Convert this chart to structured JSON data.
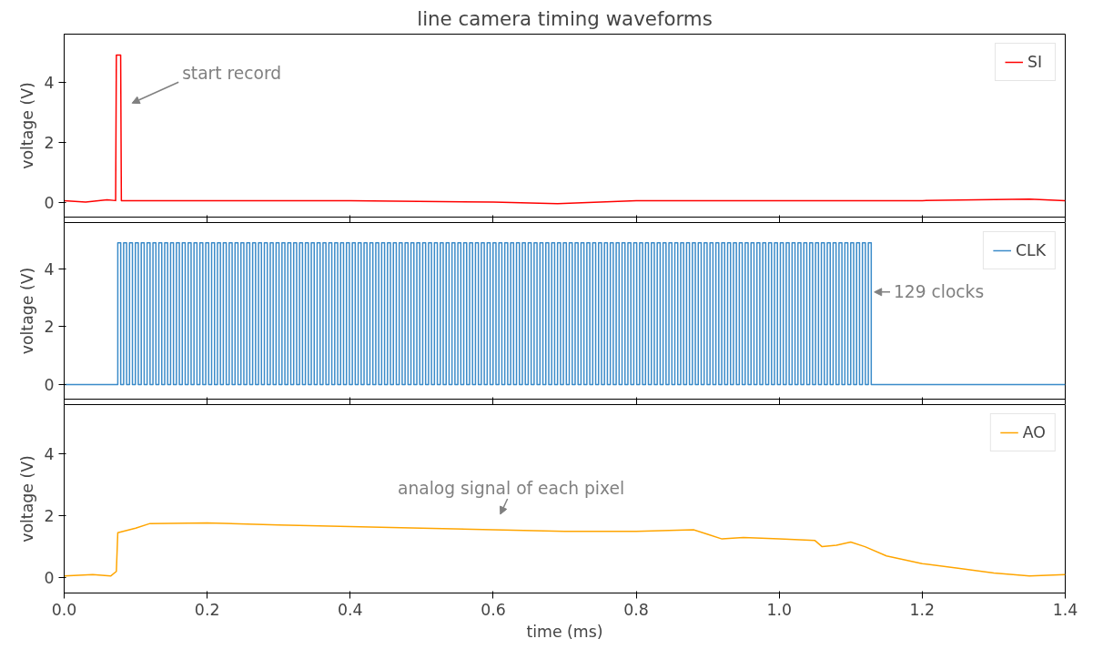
{
  "chart_data": [
    {
      "type": "line",
      "title": "line camera timing waveforms",
      "ylabel": "voltage (V)",
      "xlim": [
        0,
        1.4
      ],
      "xticks": [
        {
          "value": 0,
          "label": null
        },
        {
          "value": 0.2,
          "label": null
        },
        {
          "value": 0.4,
          "label": null
        },
        {
          "value": 0.6,
          "label": null
        },
        {
          "value": 0.8,
          "label": null
        },
        {
          "value": 1.0,
          "label": null
        },
        {
          "value": 1.2,
          "label": null
        },
        {
          "value": 1.4,
          "label": null
        }
      ],
      "ylim": [
        -0.5,
        5.6
      ],
      "yticks": [
        0,
        2,
        4
      ],
      "tick_labels": "y",
      "legend": "top right",
      "grid": false,
      "series": [
        {
          "name": "SI",
          "color": "#ff0000",
          "x": [
            0,
            0.03,
            0.06,
            0.072,
            0.073,
            0.079,
            0.08,
            0.2,
            0.4,
            0.6,
            0.69,
            0.8,
            1.0,
            1.2,
            1.35,
            1.4
          ],
          "values": [
            0.05,
            0.0,
            0.08,
            0.05,
            4.9,
            4.9,
            0.05,
            0.05,
            0.05,
            0.0,
            -0.05,
            0.05,
            0.05,
            0.05,
            0.1,
            0.05
          ]
        }
      ],
      "annotations": [
        "start record"
      ]
    },
    {
      "type": "step",
      "ylabel": "voltage (V)",
      "xlim": [
        0,
        1.4
      ],
      "xticks": [
        {
          "value": 0,
          "label": null
        },
        {
          "value": 0.2,
          "label": null
        },
        {
          "value": 0.4,
          "label": null
        },
        {
          "value": 0.6,
          "label": null
        },
        {
          "value": 0.8,
          "label": null
        },
        {
          "value": 1.0,
          "label": null
        },
        {
          "value": 1.2,
          "label": null
        },
        {
          "value": 1.4,
          "label": null
        }
      ],
      "ylim": [
        -0.5,
        5.6
      ],
      "yticks": [
        0,
        2,
        4
      ],
      "tick_labels": "y",
      "legend": "top right",
      "grid": false,
      "series": [
        {
          "name": "CLK",
          "color": "#3b8bc9",
          "x": [
            0,
            0.075,
            0.0791,
            0.0832,
            0.0873,
            0.0914,
            0.0955,
            0.0996,
            0.1037,
            0.1078,
            0.1119,
            0.116,
            0.1201,
            0.1242,
            0.1283,
            0.1324,
            0.1365,
            0.1406,
            0.1447,
            0.1488,
            0.1529,
            0.157,
            0.1611,
            0.1652,
            0.1693,
            0.1734,
            0.1775,
            0.1816,
            0.1857,
            0.1898,
            0.1939,
            0.198,
            0.2021,
            0.2062,
            0.2103,
            0.2144,
            0.2185,
            0.2226,
            0.2267,
            0.2308,
            0.2349,
            0.239,
            0.2431,
            0.2472,
            0.2513,
            0.2554,
            0.2595,
            0.2636,
            0.2677,
            0.2718,
            0.2759,
            0.28,
            0.2841,
            0.2882,
            0.2923,
            0.2964,
            0.3005,
            0.3046,
            0.3087,
            0.3128,
            0.3169,
            0.321,
            0.3251,
            0.3292,
            0.3333,
            0.3374,
            0.3415,
            0.3456,
            0.3497,
            0.3538,
            0.3579,
            0.362,
            0.3661,
            0.3702,
            0.3743,
            0.3784,
            0.3825,
            0.3866,
            0.3907,
            0.3948,
            0.3989,
            0.403,
            0.4071,
            0.4112,
            0.4153,
            0.4194,
            0.4235,
            0.4276,
            0.4317,
            0.4358,
            0.4399,
            0.444,
            0.4481,
            0.4522,
            0.4563,
            0.4604,
            0.4645,
            0.4686,
            0.4727,
            0.4768,
            0.4809,
            0.485,
            0.4891,
            0.4932,
            0.4973,
            0.5014,
            0.5055,
            0.5096,
            0.5137,
            0.5178,
            0.5219,
            0.526,
            0.5301,
            0.5342,
            0.5383,
            0.5424,
            0.5465,
            0.5506,
            0.5547,
            0.5588,
            0.5629,
            0.567,
            0.5711,
            0.5752,
            0.5793,
            0.5834,
            0.5875,
            0.5916,
            0.5957,
            0.5998,
            0.6039,
            0.608,
            0.6121,
            0.6162,
            0.6203,
            0.6244,
            0.6285,
            0.6326,
            0.6367,
            0.6408,
            0.6449,
            0.649,
            0.6531,
            0.6572,
            0.6613,
            0.6654,
            0.6695,
            0.6736,
            0.6777,
            0.6818,
            0.6859,
            0.69,
            0.6941,
            0.6982,
            0.7023,
            0.7064,
            0.7105,
            0.7146,
            0.7187,
            0.7228,
            0.7269,
            0.731,
            0.7351,
            0.7392,
            0.7433,
            0.7474,
            0.7515,
            0.7556,
            0.7597,
            0.7638,
            0.7679,
            0.772,
            0.7761,
            0.7802,
            0.7843,
            0.7884,
            0.7925,
            0.7966,
            0.8007,
            0.8048,
            0.8089,
            0.813,
            0.8171,
            0.8212,
            0.8253,
            0.8294,
            0.8335,
            0.8376,
            0.8417,
            0.8458,
            0.8499,
            0.854,
            0.8581,
            0.8622,
            0.8663,
            0.8704,
            0.8745,
            0.8786,
            0.8827,
            0.8868,
            0.8909,
            0.895,
            0.8991,
            0.9032,
            0.9073,
            0.9114,
            0.9155,
            0.9196,
            0.9237,
            0.9278,
            0.9319,
            0.936,
            0.9401,
            0.9442,
            0.9483,
            0.9524,
            0.9565,
            0.9606,
            0.9647,
            0.9688,
            0.9729,
            0.977,
            0.9811,
            0.9852,
            0.9893,
            0.9934,
            0.9975,
            1.0016,
            1.0057,
            1.0098,
            1.0139,
            1.018,
            1.0221,
            1.0262,
            1.0303,
            1.0344,
            1.0385,
            1.0426,
            1.0467,
            1.0508,
            1.0549,
            1.059,
            1.0631,
            1.0672,
            1.0713,
            1.0754,
            1.0795,
            1.0836,
            1.0877,
            1.0918,
            1.0959,
            1.1,
            1.1041,
            1.1082,
            1.1123,
            1.1164,
            1.1205,
            1.1246,
            1.1287,
            1.4
          ],
          "values": [
            0,
            4.9,
            0,
            4.9,
            0,
            4.9,
            0,
            4.9,
            0,
            4.9,
            0,
            4.9,
            0,
            4.9,
            0,
            4.9,
            0,
            4.9,
            0,
            4.9,
            0,
            4.9,
            0,
            4.9,
            0,
            4.9,
            0,
            4.9,
            0,
            4.9,
            0,
            4.9,
            0,
            4.9,
            0,
            4.9,
            0,
            4.9,
            0,
            4.9,
            0,
            4.9,
            0,
            4.9,
            0,
            4.9,
            0,
            4.9,
            0,
            4.9,
            0,
            4.9,
            0,
            4.9,
            0,
            4.9,
            0,
            4.9,
            0,
            4.9,
            0,
            4.9,
            0,
            4.9,
            0,
            4.9,
            0,
            4.9,
            0,
            4.9,
            0,
            4.9,
            0,
            4.9,
            0,
            4.9,
            0,
            4.9,
            0,
            4.9,
            0,
            4.9,
            0,
            4.9,
            0,
            4.9,
            0,
            4.9,
            0,
            4.9,
            0,
            4.9,
            0,
            4.9,
            0,
            4.9,
            0,
            4.9,
            0,
            4.9,
            0,
            4.9,
            0,
            4.9,
            0,
            4.9,
            0,
            4.9,
            0,
            4.9,
            0,
            4.9,
            0,
            4.9,
            0,
            4.9,
            0,
            4.9,
            0,
            4.9,
            0,
            4.9,
            0,
            4.9,
            0,
            4.9,
            0,
            4.9,
            0,
            4.9,
            0,
            4.9,
            0,
            4.9,
            0,
            4.9,
            0,
            4.9,
            0,
            4.9,
            0,
            4.9,
            0,
            4.9,
            0,
            4.9,
            0,
            4.9,
            0,
            4.9,
            0,
            4.9,
            0,
            4.9,
            0,
            4.9,
            0,
            4.9,
            0,
            4.9,
            0,
            4.9,
            0,
            4.9,
            0,
            4.9,
            0,
            4.9,
            0,
            4.9,
            0,
            4.9,
            0,
            4.9,
            0,
            4.9,
            0,
            4.9,
            0,
            4.9,
            0,
            4.9,
            0,
            4.9,
            0,
            4.9,
            0,
            4.9,
            0,
            4.9,
            0,
            4.9,
            0,
            4.9,
            0,
            4.9,
            0,
            4.9,
            0,
            4.9,
            0,
            4.9,
            0,
            4.9,
            0,
            4.9,
            0,
            4.9,
            0,
            4.9,
            0,
            4.9,
            0,
            4.9,
            0,
            4.9,
            0,
            4.9,
            0,
            4.9,
            0,
            4.9,
            0,
            4.9,
            0,
            4.9,
            0,
            4.9,
            0,
            4.9,
            0,
            4.9,
            0,
            4.9,
            0,
            4.9,
            0,
            4.9,
            0,
            4.9,
            0,
            4.9,
            0,
            4.9,
            0,
            4.9,
            0,
            4.9,
            0,
            4.9,
            0,
            4.9,
            0,
            4.9,
            0,
            4.9,
            0,
            4.9,
            0,
            0
          ]
        }
      ],
      "annotations": [
        "129 clocks"
      ]
    },
    {
      "type": "line",
      "ylabel": "voltage (V)",
      "xlabel": "time (ms)",
      "xlim": [
        0,
        1.4
      ],
      "xticks": [
        {
          "value": 0,
          "label": "0.0"
        },
        {
          "value": 0.2,
          "label": "0.2"
        },
        {
          "value": 0.4,
          "label": "0.4"
        },
        {
          "value": 0.6,
          "label": "0.6"
        },
        {
          "value": 0.8,
          "label": "0.8"
        },
        {
          "value": 1.0,
          "label": "1.0"
        },
        {
          "value": 1.2,
          "label": "1.2"
        },
        {
          "value": 1.4,
          "label": "1.4"
        }
      ],
      "ylim": [
        -0.5,
        5.6
      ],
      "yticks": [
        0,
        2,
        4
      ],
      "legend": "top right",
      "grid": false,
      "series": [
        {
          "name": "AO",
          "color": "#ffa500",
          "x": [
            0,
            0.04,
            0.065,
            0.073,
            0.075,
            0.1,
            0.12,
            0.2,
            0.3,
            0.4,
            0.5,
            0.6,
            0.7,
            0.8,
            0.88,
            0.9,
            0.92,
            0.95,
            1.0,
            1.05,
            1.06,
            1.08,
            1.1,
            1.12,
            1.15,
            1.2,
            1.25,
            1.3,
            1.35,
            1.4
          ],
          "values": [
            0.05,
            0.1,
            0.05,
            0.2,
            1.45,
            1.6,
            1.75,
            1.77,
            1.7,
            1.65,
            1.6,
            1.55,
            1.5,
            1.5,
            1.55,
            1.4,
            1.25,
            1.3,
            1.25,
            1.2,
            1.0,
            1.05,
            1.15,
            1.0,
            0.7,
            0.45,
            0.3,
            0.15,
            0.05,
            0.1
          ]
        }
      ],
      "annotations": [
        "analog signal of each pixel"
      ]
    }
  ]
}
